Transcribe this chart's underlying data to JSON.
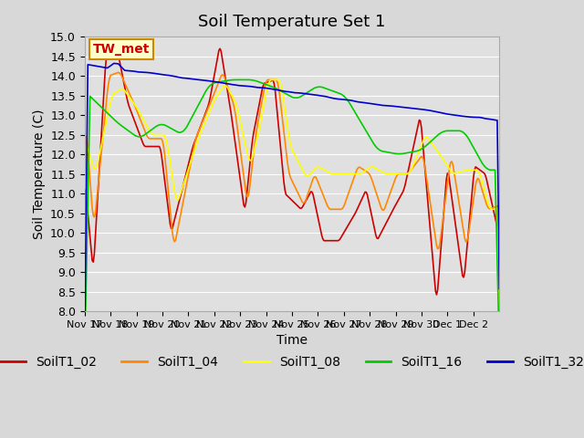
{
  "title": "Soil Temperature Set 1",
  "xlabel": "Time",
  "ylabel": "Soil Temperature (C)",
  "ylim": [
    8.0,
    15.0
  ],
  "yticks": [
    8.0,
    8.5,
    9.0,
    9.5,
    10.0,
    10.5,
    11.0,
    11.5,
    12.0,
    12.5,
    13.0,
    13.5,
    14.0,
    14.5,
    15.0
  ],
  "xtick_labels": [
    "Nov 17",
    "Nov 18",
    "Nov 19",
    "Nov 20",
    "Nov 21",
    "Nov 22",
    "Nov 23",
    "Nov 24",
    "Nov 25",
    "Nov 26",
    "Nov 27",
    "Nov 28",
    "Nov 29",
    "Nov 30",
    "Dec 1",
    "Dec 2"
  ],
  "legend_labels": [
    "SoilT1_02",
    "SoilT1_04",
    "SoilT1_08",
    "SoilT1_16",
    "SoilT1_32"
  ],
  "line_colors": [
    "#cc0000",
    "#ff8800",
    "#ffff00",
    "#00cc00",
    "#0000cc"
  ],
  "annotation_text": "TW_met",
  "annotation_color": "#cc0000",
  "annotation_bg": "#ffffcc",
  "annotation_edge": "#cc8800",
  "fig_bg_color": "#d8d8d8",
  "plot_bg": "#e0e0e0",
  "grid_color": "#ffffff",
  "title_fontsize": 13,
  "axis_fontsize": 10,
  "tick_fontsize": 9,
  "legend_fontsize": 10
}
